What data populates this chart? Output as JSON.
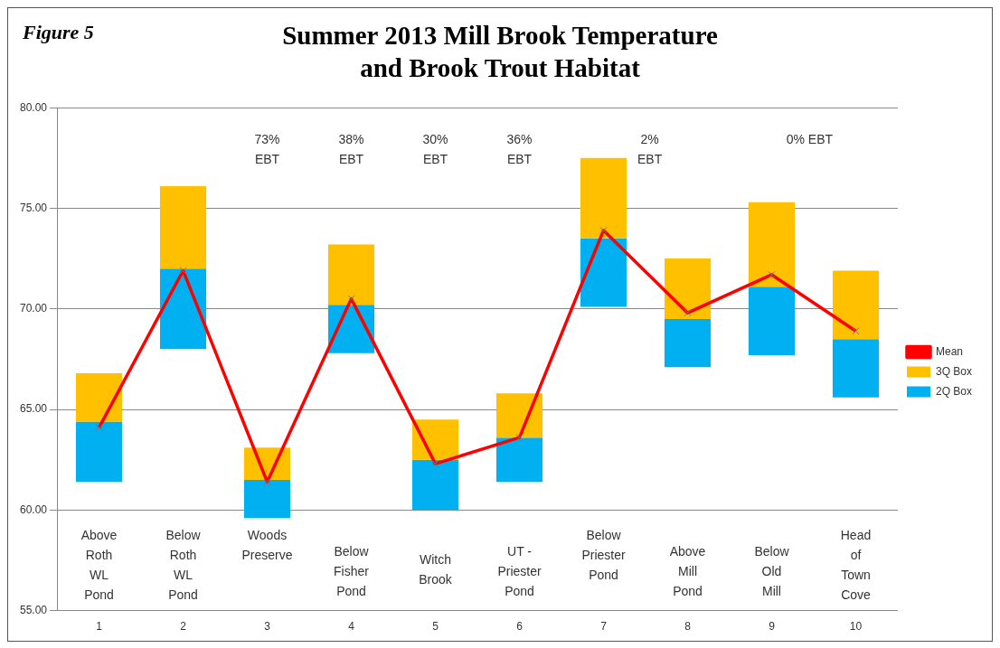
{
  "chart_data": {
    "type": "bar",
    "title": "Summer 2013 Mill Brook Temperature\nand Brook Trout Habitat",
    "categories": [
      "1",
      "2",
      "3",
      "4",
      "5",
      "6",
      "7",
      "8",
      "9",
      "10"
    ],
    "series": [
      {
        "name": "3Q Box",
        "color": "#ffc000",
        "base": [
          64.4,
          72.0,
          61.5,
          70.2,
          62.5,
          63.6,
          73.5,
          69.5,
          71.1,
          68.5
        ],
        "values": [
          2.4,
          4.1,
          1.6,
          3.0,
          2.0,
          2.2,
          4.0,
          3.0,
          4.2,
          3.4
        ]
      },
      {
        "name": "2Q Box",
        "color": "#00b0f0",
        "base": [
          61.4,
          68.0,
          59.6,
          67.8,
          60.0,
          61.4,
          70.1,
          67.1,
          67.7,
          65.6
        ],
        "values": [
          3.0,
          4.0,
          1.9,
          2.4,
          2.5,
          2.2,
          3.4,
          2.4,
          3.4,
          2.9
        ]
      },
      {
        "name": "Mean",
        "type": "line",
        "color": "#ff0000",
        "marker": "cross",
        "values": [
          64.1,
          71.9,
          61.4,
          70.5,
          62.3,
          63.6,
          73.9,
          69.8,
          71.7,
          68.9
        ]
      }
    ],
    "ylim": [
      55,
      80
    ],
    "yticks": [
      {
        "value": 55,
        "label": "55.00"
      },
      {
        "value": 60,
        "label": "60.00"
      },
      {
        "value": 65,
        "label": "65.00"
      },
      {
        "value": 70,
        "label": "70.00"
      },
      {
        "value": 75,
        "label": "75.00"
      },
      {
        "value": 80,
        "label": "80.00"
      }
    ],
    "grid": "y",
    "legend": "right",
    "annotations": [
      "Figure 5",
      "Above\nRoth\nWL\nPond",
      "Below\nRoth\nWL\nPond",
      "Woods\nPreserve",
      "Below\nFisher\nPond",
      "Witch\nBrook",
      "UT -\nPriester\nPond",
      "Below\nPriester\nPond",
      "Above\nMill\nPond",
      "Below\nOld\nMill",
      "Head\nof\nTown\nCove",
      "73%\nEBT",
      "38%\nEBT",
      "30%\nEBT",
      "36%\nEBT",
      "2%\nEBT",
      "0% EBT"
    ]
  }
}
